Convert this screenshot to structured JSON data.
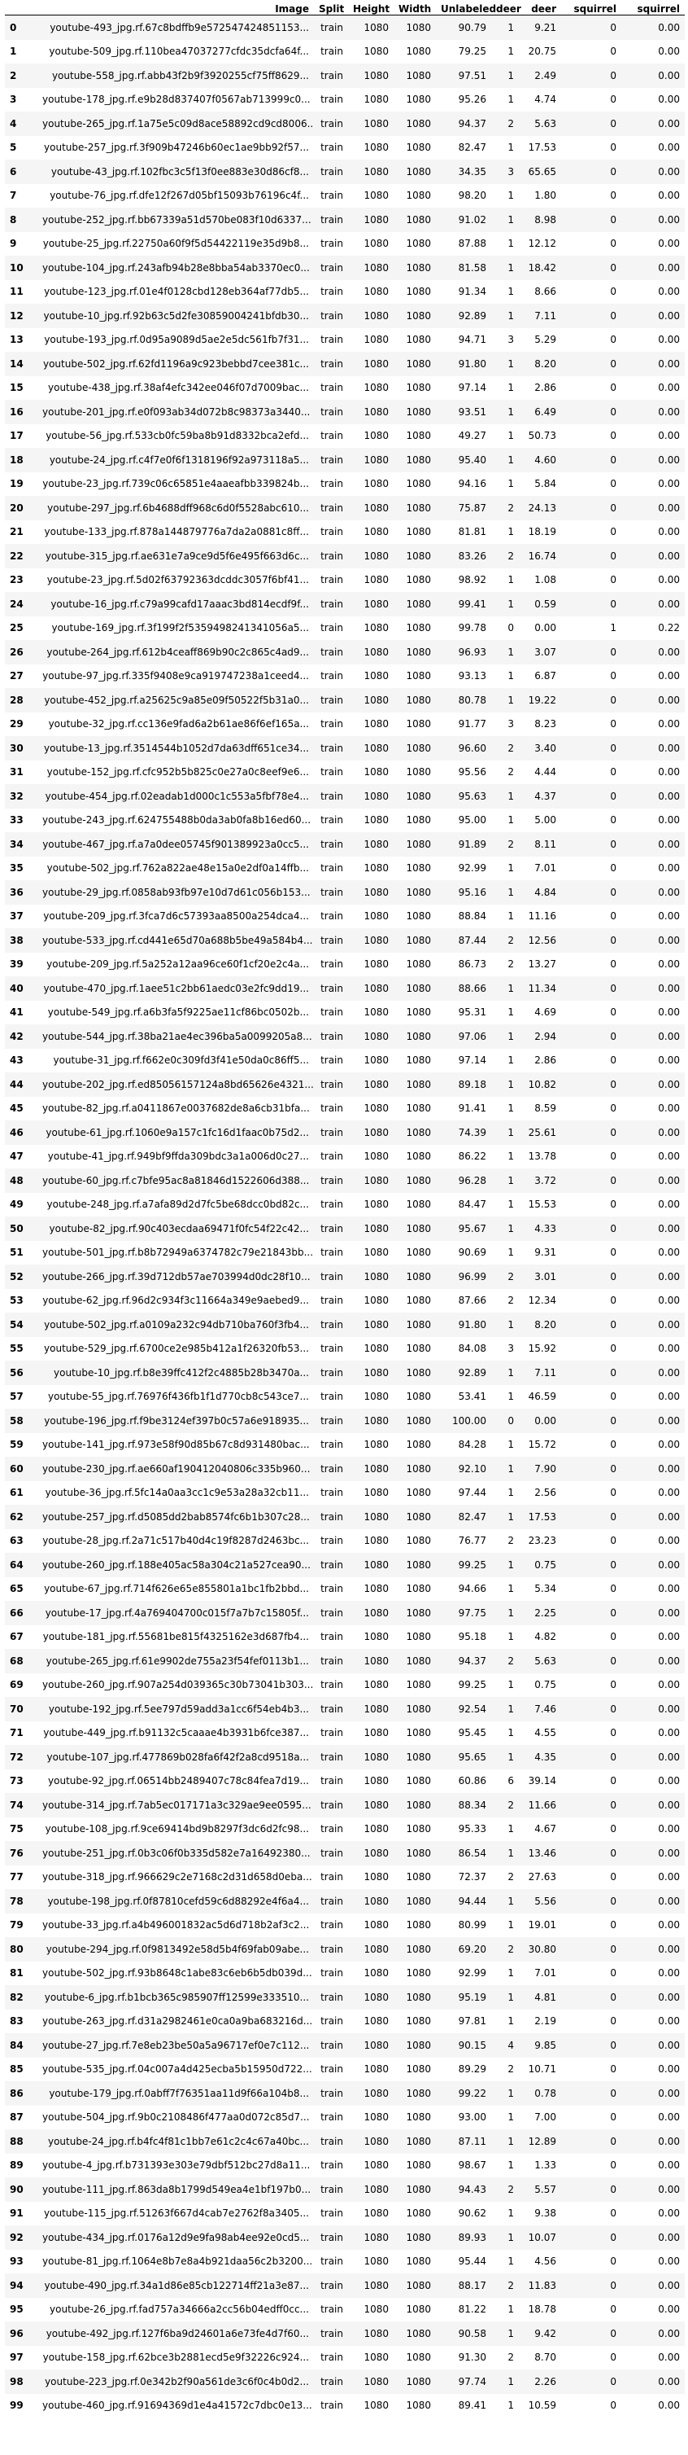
{
  "columns": [
    "",
    "Image",
    "Split",
    "Height",
    "Width",
    "Unlabeled",
    "deer",
    "deer",
    "squirrel",
    "squirrel"
  ],
  "rows": [
    [
      "0",
      "youtube-493_jpg.rf.67c8bdffb9e572547424851153...",
      "train",
      "1080",
      "1080",
      "90.79",
      "1",
      "9.21",
      "0",
      "0.00"
    ],
    [
      "1",
      "youtube-509_jpg.rf.110bea47037277cfdc35dcfa64f...",
      "train",
      "1080",
      "1080",
      "79.25",
      "1",
      "20.75",
      "0",
      "0.00"
    ],
    [
      "2",
      "youtube-558_jpg.rf.abb43f2b9f3920255cf75ff8629...",
      "train",
      "1080",
      "1080",
      "97.51",
      "1",
      "2.49",
      "0",
      "0.00"
    ],
    [
      "3",
      "youtube-178_jpg.rf.e9b28d837407f0567ab713999c0...",
      "train",
      "1080",
      "1080",
      "95.26",
      "1",
      "4.74",
      "0",
      "0.00"
    ],
    [
      "4",
      "youtube-265_jpg.rf.1a75e5c09d8ace58892cd9cd8006...",
      "train",
      "1080",
      "1080",
      "94.37",
      "2",
      "5.63",
      "0",
      "0.00"
    ],
    [
      "5",
      "youtube-257_jpg.rf.3f909b47246b60ec1ae9bb92f57...",
      "train",
      "1080",
      "1080",
      "82.47",
      "1",
      "17.53",
      "0",
      "0.00"
    ],
    [
      "6",
      "youtube-43_jpg.rf.102fbc3c5f13f0ee883e30d86cf8...",
      "train",
      "1080",
      "1080",
      "34.35",
      "3",
      "65.65",
      "0",
      "0.00"
    ],
    [
      "7",
      "youtube-76_jpg.rf.dfe12f267d05bf15093b76196c4f...",
      "train",
      "1080",
      "1080",
      "98.20",
      "1",
      "1.80",
      "0",
      "0.00"
    ],
    [
      "8",
      "youtube-252_jpg.rf.bb67339a51d570be083f10d6337...",
      "train",
      "1080",
      "1080",
      "91.02",
      "1",
      "8.98",
      "0",
      "0.00"
    ],
    [
      "9",
      "youtube-25_jpg.rf.22750a60f9f5d54422119e35d9b8...",
      "train",
      "1080",
      "1080",
      "87.88",
      "1",
      "12.12",
      "0",
      "0.00"
    ],
    [
      "10",
      "youtube-104_jpg.rf.243afb94b28e8bba54ab3370ec0...",
      "train",
      "1080",
      "1080",
      "81.58",
      "1",
      "18.42",
      "0",
      "0.00"
    ],
    [
      "11",
      "youtube-123_jpg.rf.01e4f0128cbd128eb364af77db5...",
      "train",
      "1080",
      "1080",
      "91.34",
      "1",
      "8.66",
      "0",
      "0.00"
    ],
    [
      "12",
      "youtube-10_jpg.rf.92b63c5d2fe30859004241bfdb30...",
      "train",
      "1080",
      "1080",
      "92.89",
      "1",
      "7.11",
      "0",
      "0.00"
    ],
    [
      "13",
      "youtube-193_jpg.rf.0d95a9089d5ae2e5dc561fb7f31...",
      "train",
      "1080",
      "1080",
      "94.71",
      "3",
      "5.29",
      "0",
      "0.00"
    ],
    [
      "14",
      "youtube-502_jpg.rf.62fd1196a9c923bebbd7cee381c...",
      "train",
      "1080",
      "1080",
      "91.80",
      "1",
      "8.20",
      "0",
      "0.00"
    ],
    [
      "15",
      "youtube-438_jpg.rf.38af4efc342ee046f07d7009bac...",
      "train",
      "1080",
      "1080",
      "97.14",
      "1",
      "2.86",
      "0",
      "0.00"
    ],
    [
      "16",
      "youtube-201_jpg.rf.e0f093ab34d072b8c98373a3440...",
      "train",
      "1080",
      "1080",
      "93.51",
      "1",
      "6.49",
      "0",
      "0.00"
    ],
    [
      "17",
      "youtube-56_jpg.rf.533cb0fc59ba8b91d8332bca2efd...",
      "train",
      "1080",
      "1080",
      "49.27",
      "1",
      "50.73",
      "0",
      "0.00"
    ],
    [
      "18",
      "youtube-24_jpg.rf.c4f7e0f6f1318196f92a973118a5...",
      "train",
      "1080",
      "1080",
      "95.40",
      "1",
      "4.60",
      "0",
      "0.00"
    ],
    [
      "19",
      "youtube-23_jpg.rf.739c06c65851e4aaeafbb339824b...",
      "train",
      "1080",
      "1080",
      "94.16",
      "1",
      "5.84",
      "0",
      "0.00"
    ],
    [
      "20",
      "youtube-297_jpg.rf.6b4688dff968c6d0f5528abc610...",
      "train",
      "1080",
      "1080",
      "75.87",
      "2",
      "24.13",
      "0",
      "0.00"
    ],
    [
      "21",
      "youtube-133_jpg.rf.878a144879776a7da2a0881c8ff...",
      "train",
      "1080",
      "1080",
      "81.81",
      "1",
      "18.19",
      "0",
      "0.00"
    ],
    [
      "22",
      "youtube-315_jpg.rf.ae631e7a9ce9d5f6e495f663d6c...",
      "train",
      "1080",
      "1080",
      "83.26",
      "2",
      "16.74",
      "0",
      "0.00"
    ],
    [
      "23",
      "youtube-23_jpg.rf.5d02f63792363dcddc3057f6bf41...",
      "train",
      "1080",
      "1080",
      "98.92",
      "1",
      "1.08",
      "0",
      "0.00"
    ],
    [
      "24",
      "youtube-16_jpg.rf.c79a99cafd17aaac3bd814ecdf9f...",
      "train",
      "1080",
      "1080",
      "99.41",
      "1",
      "0.59",
      "0",
      "0.00"
    ],
    [
      "25",
      "youtube-169_jpg.rf.3f199f2f5359498241341056a5...",
      "train",
      "1080",
      "1080",
      "99.78",
      "0",
      "0.00",
      "1",
      "0.22"
    ],
    [
      "26",
      "youtube-264_jpg.rf.612b4ceaff869b90c2c865c4ad9...",
      "train",
      "1080",
      "1080",
      "96.93",
      "1",
      "3.07",
      "0",
      "0.00"
    ],
    [
      "27",
      "youtube-97_jpg.rf.335f9408e9ca919747238a1ceed4...",
      "train",
      "1080",
      "1080",
      "93.13",
      "1",
      "6.87",
      "0",
      "0.00"
    ],
    [
      "28",
      "youtube-452_jpg.rf.a25625c9a85e09f50522f5b31a0...",
      "train",
      "1080",
      "1080",
      "80.78",
      "1",
      "19.22",
      "0",
      "0.00"
    ],
    [
      "29",
      "youtube-32_jpg.rf.cc136e9fad6a2b61ae86f6ef165a...",
      "train",
      "1080",
      "1080",
      "91.77",
      "3",
      "8.23",
      "0",
      "0.00"
    ],
    [
      "30",
      "youtube-13_jpg.rf.3514544b1052d7da63dff651ce34...",
      "train",
      "1080",
      "1080",
      "96.60",
      "2",
      "3.40",
      "0",
      "0.00"
    ],
    [
      "31",
      "youtube-152_jpg.rf.cfc952b5b825c0e27a0c8eef9e6...",
      "train",
      "1080",
      "1080",
      "95.56",
      "2",
      "4.44",
      "0",
      "0.00"
    ],
    [
      "32",
      "youtube-454_jpg.rf.02eadab1d000c1c553a5fbf78e4...",
      "train",
      "1080",
      "1080",
      "95.63",
      "1",
      "4.37",
      "0",
      "0.00"
    ],
    [
      "33",
      "youtube-243_jpg.rf.624755488b0da3ab0fa8b16ed60...",
      "train",
      "1080",
      "1080",
      "95.00",
      "1",
      "5.00",
      "0",
      "0.00"
    ],
    [
      "34",
      "youtube-467_jpg.rf.a7a0dee05745f901389923a0cc5...",
      "train",
      "1080",
      "1080",
      "91.89",
      "2",
      "8.11",
      "0",
      "0.00"
    ],
    [
      "35",
      "youtube-502_jpg.rf.762a822ae48e15a0e2df0a14ffb...",
      "train",
      "1080",
      "1080",
      "92.99",
      "1",
      "7.01",
      "0",
      "0.00"
    ],
    [
      "36",
      "youtube-29_jpg.rf.0858ab93fb97e10d7d61c056b153...",
      "train",
      "1080",
      "1080",
      "95.16",
      "1",
      "4.84",
      "0",
      "0.00"
    ],
    [
      "37",
      "youtube-209_jpg.rf.3fca7d6c57393aa8500a254dca4...",
      "train",
      "1080",
      "1080",
      "88.84",
      "1",
      "11.16",
      "0",
      "0.00"
    ],
    [
      "38",
      "youtube-533_jpg.rf.cd441e65d70a688b5be49a584b4...",
      "train",
      "1080",
      "1080",
      "87.44",
      "2",
      "12.56",
      "0",
      "0.00"
    ],
    [
      "39",
      "youtube-209_jpg.rf.5a252a12aa96ce60f1cf20e2c4a...",
      "train",
      "1080",
      "1080",
      "86.73",
      "2",
      "13.27",
      "0",
      "0.00"
    ],
    [
      "40",
      "youtube-470_jpg.rf.1aee51c2bb61aedc03e2fc9dd19...",
      "train",
      "1080",
      "1080",
      "88.66",
      "1",
      "11.34",
      "0",
      "0.00"
    ],
    [
      "41",
      "youtube-549_jpg.rf.a6b3fa5f9225ae11cf86bc0502b...",
      "train",
      "1080",
      "1080",
      "95.31",
      "1",
      "4.69",
      "0",
      "0.00"
    ],
    [
      "42",
      "youtube-544_jpg.rf.38ba21ae4ec396ba5a0099205a8...",
      "train",
      "1080",
      "1080",
      "97.06",
      "1",
      "2.94",
      "0",
      "0.00"
    ],
    [
      "43",
      "youtube-31_jpg.rf.f662e0c309fd3f41e50da0c86ff5...",
      "train",
      "1080",
      "1080",
      "97.14",
      "1",
      "2.86",
      "0",
      "0.00"
    ],
    [
      "44",
      "youtube-202_jpg.rf.ed85056157124a8bd65626e4321...",
      "train",
      "1080",
      "1080",
      "89.18",
      "1",
      "10.82",
      "0",
      "0.00"
    ],
    [
      "45",
      "youtube-82_jpg.rf.a0411867e0037682de8a6cb31bfa...",
      "train",
      "1080",
      "1080",
      "91.41",
      "1",
      "8.59",
      "0",
      "0.00"
    ],
    [
      "46",
      "youtube-61_jpg.rf.1060e9a157c1fc16d1faac0b75d2...",
      "train",
      "1080",
      "1080",
      "74.39",
      "1",
      "25.61",
      "0",
      "0.00"
    ],
    [
      "47",
      "youtube-41_jpg.rf.949bf9ffda309bdc3a1a006d0c27...",
      "train",
      "1080",
      "1080",
      "86.22",
      "1",
      "13.78",
      "0",
      "0.00"
    ],
    [
      "48",
      "youtube-60_jpg.rf.c7bfe95ac8a81846d1522606d388...",
      "train",
      "1080",
      "1080",
      "96.28",
      "1",
      "3.72",
      "0",
      "0.00"
    ],
    [
      "49",
      "youtube-248_jpg.rf.a7afa89d2d7fc5be68dcc0bd82c...",
      "train",
      "1080",
      "1080",
      "84.47",
      "1",
      "15.53",
      "0",
      "0.00"
    ],
    [
      "50",
      "youtube-82_jpg.rf.90c403ecdaa69471f0fc54f22c42...",
      "train",
      "1080",
      "1080",
      "95.67",
      "1",
      "4.33",
      "0",
      "0.00"
    ],
    [
      "51",
      "youtube-501_jpg.rf.b8b72949a6374782c79e21843bb...",
      "train",
      "1080",
      "1080",
      "90.69",
      "1",
      "9.31",
      "0",
      "0.00"
    ],
    [
      "52",
      "youtube-266_jpg.rf.39d712db57ae703994d0dc28f10...",
      "train",
      "1080",
      "1080",
      "96.99",
      "2",
      "3.01",
      "0",
      "0.00"
    ],
    [
      "53",
      "youtube-62_jpg.rf.96d2c934f3c11664a349e9aebed9...",
      "train",
      "1080",
      "1080",
      "87.66",
      "2",
      "12.34",
      "0",
      "0.00"
    ],
    [
      "54",
      "youtube-502_jpg.rf.a0109a232c94db710ba760f3fb4...",
      "train",
      "1080",
      "1080",
      "91.80",
      "1",
      "8.20",
      "0",
      "0.00"
    ],
    [
      "55",
      "youtube-529_jpg.rf.6700ce2e985b412a1f26320fb53...",
      "train",
      "1080",
      "1080",
      "84.08",
      "3",
      "15.92",
      "0",
      "0.00"
    ],
    [
      "56",
      "youtube-10_jpg.rf.b8e39ffc412f2c4885b28b3470a...",
      "train",
      "1080",
      "1080",
      "92.89",
      "1",
      "7.11",
      "0",
      "0.00"
    ],
    [
      "57",
      "youtube-55_jpg.rf.76976f436fb1f1d770cb8c543ce7...",
      "train",
      "1080",
      "1080",
      "53.41",
      "1",
      "46.59",
      "0",
      "0.00"
    ],
    [
      "58",
      "youtube-196_jpg.rf.f9be3124ef397b0c57a6e918935...",
      "train",
      "1080",
      "1080",
      "100.00",
      "0",
      "0.00",
      "0",
      "0.00"
    ],
    [
      "59",
      "youtube-141_jpg.rf.973e58f90d85b67c8d931480bac...",
      "train",
      "1080",
      "1080",
      "84.28",
      "1",
      "15.72",
      "0",
      "0.00"
    ],
    [
      "60",
      "youtube-230_jpg.rf.ae660af190412040806c335b960...",
      "train",
      "1080",
      "1080",
      "92.10",
      "1",
      "7.90",
      "0",
      "0.00"
    ],
    [
      "61",
      "youtube-36_jpg.rf.5fc14a0aa3cc1c9e53a28a32cb11...",
      "train",
      "1080",
      "1080",
      "97.44",
      "1",
      "2.56",
      "0",
      "0.00"
    ],
    [
      "62",
      "youtube-257_jpg.rf.d5085dd2bab8574fc6b1b307c28...",
      "train",
      "1080",
      "1080",
      "82.47",
      "1",
      "17.53",
      "0",
      "0.00"
    ],
    [
      "63",
      "youtube-28_jpg.rf.2a71c517b40d4c19f8287d2463bc...",
      "train",
      "1080",
      "1080",
      "76.77",
      "2",
      "23.23",
      "0",
      "0.00"
    ],
    [
      "64",
      "youtube-260_jpg.rf.188e405ac58a304c21a527cea90...",
      "train",
      "1080",
      "1080",
      "99.25",
      "1",
      "0.75",
      "0",
      "0.00"
    ],
    [
      "65",
      "youtube-67_jpg.rf.714f626e65e855801a1bc1fb2bbd...",
      "train",
      "1080",
      "1080",
      "94.66",
      "1",
      "5.34",
      "0",
      "0.00"
    ],
    [
      "66",
      "youtube-17_jpg.rf.4a769404700c015f7a7b7c15805f...",
      "train",
      "1080",
      "1080",
      "97.75",
      "1",
      "2.25",
      "0",
      "0.00"
    ],
    [
      "67",
      "youtube-181_jpg.rf.55681be815f4325162e3d687fb4...",
      "train",
      "1080",
      "1080",
      "95.18",
      "1",
      "4.82",
      "0",
      "0.00"
    ],
    [
      "68",
      "youtube-265_jpg.rf.61e9902de755a23f54fef0113b1...",
      "train",
      "1080",
      "1080",
      "94.37",
      "2",
      "5.63",
      "0",
      "0.00"
    ],
    [
      "69",
      "youtube-260_jpg.rf.907a254d039365c30b73041b303...",
      "train",
      "1080",
      "1080",
      "99.25",
      "1",
      "0.75",
      "0",
      "0.00"
    ],
    [
      "70",
      "youtube-192_jpg.rf.5ee797d59add3a1cc6f54eb4b3...",
      "train",
      "1080",
      "1080",
      "92.54",
      "1",
      "7.46",
      "0",
      "0.00"
    ],
    [
      "71",
      "youtube-449_jpg.rf.b91132c5caaae4b3931b6fce387...",
      "train",
      "1080",
      "1080",
      "95.45",
      "1",
      "4.55",
      "0",
      "0.00"
    ],
    [
      "72",
      "youtube-107_jpg.rf.477869b028fa6f42f2a8cd9518a...",
      "train",
      "1080",
      "1080",
      "95.65",
      "1",
      "4.35",
      "0",
      "0.00"
    ],
    [
      "73",
      "youtube-92_jpg.rf.06514bb2489407c78c84fea7d19...",
      "train",
      "1080",
      "1080",
      "60.86",
      "6",
      "39.14",
      "0",
      "0.00"
    ],
    [
      "74",
      "youtube-314_jpg.rf.7ab5ec017171a3c329ae9ee0595...",
      "train",
      "1080",
      "1080",
      "88.34",
      "2",
      "11.66",
      "0",
      "0.00"
    ],
    [
      "75",
      "youtube-108_jpg.rf.9ce69414bd9b8297f3dc6d2fc98...",
      "train",
      "1080",
      "1080",
      "95.33",
      "1",
      "4.67",
      "0",
      "0.00"
    ],
    [
      "76",
      "youtube-251_jpg.rf.0b3c06f0b335d582e7a16492380...",
      "train",
      "1080",
      "1080",
      "86.54",
      "1",
      "13.46",
      "0",
      "0.00"
    ],
    [
      "77",
      "youtube-318_jpg.rf.966629c2e7168c2d31d658d0eba...",
      "train",
      "1080",
      "1080",
      "72.37",
      "2",
      "27.63",
      "0",
      "0.00"
    ],
    [
      "78",
      "youtube-198_jpg.rf.0f87810cefd59c6d88292e4f6a4...",
      "train",
      "1080",
      "1080",
      "94.44",
      "1",
      "5.56",
      "0",
      "0.00"
    ],
    [
      "79",
      "youtube-33_jpg.rf.a4b496001832ac5d6d718b2af3c2...",
      "train",
      "1080",
      "1080",
      "80.99",
      "1",
      "19.01",
      "0",
      "0.00"
    ],
    [
      "80",
      "youtube-294_jpg.rf.0f9813492e58d5b4f69fab09abe...",
      "train",
      "1080",
      "1080",
      "69.20",
      "2",
      "30.80",
      "0",
      "0.00"
    ],
    [
      "81",
      "youtube-502_jpg.rf.93b8648c1abe83c6eb6b5db039d...",
      "train",
      "1080",
      "1080",
      "92.99",
      "1",
      "7.01",
      "0",
      "0.00"
    ],
    [
      "82",
      "youtube-6_jpg.rf.b1bcb365c985907ff12599e333510...",
      "train",
      "1080",
      "1080",
      "95.19",
      "1",
      "4.81",
      "0",
      "0.00"
    ],
    [
      "83",
      "youtube-263_jpg.rf.d31a2982461e0ca0a9ba683216d...",
      "train",
      "1080",
      "1080",
      "97.81",
      "1",
      "2.19",
      "0",
      "0.00"
    ],
    [
      "84",
      "youtube-27_jpg.rf.7e8eb23be50a5a96717ef0e7c112...",
      "train",
      "1080",
      "1080",
      "90.15",
      "4",
      "9.85",
      "0",
      "0.00"
    ],
    [
      "85",
      "youtube-535_jpg.rf.04c007a4d425ecba5b15950d722...",
      "train",
      "1080",
      "1080",
      "89.29",
      "2",
      "10.71",
      "0",
      "0.00"
    ],
    [
      "86",
      "youtube-179_jpg.rf.0abff7f76351aa11d9f66a104b8...",
      "train",
      "1080",
      "1080",
      "99.22",
      "1",
      "0.78",
      "0",
      "0.00"
    ],
    [
      "87",
      "youtube-504_jpg.rf.9b0c2108486f477aa0d072c85d7...",
      "train",
      "1080",
      "1080",
      "93.00",
      "1",
      "7.00",
      "0",
      "0.00"
    ],
    [
      "88",
      "youtube-24_jpg.rf.b4fc4f81c1bb7e61c2c4c67a40bc...",
      "train",
      "1080",
      "1080",
      "87.11",
      "1",
      "12.89",
      "0",
      "0.00"
    ],
    [
      "89",
      "youtube-4_jpg.rf.b731393e303e79dbf512bc27d8a11...",
      "train",
      "1080",
      "1080",
      "98.67",
      "1",
      "1.33",
      "0",
      "0.00"
    ],
    [
      "90",
      "youtube-111_jpg.rf.863da8b1799d549ea4e1bf197b0...",
      "train",
      "1080",
      "1080",
      "94.43",
      "2",
      "5.57",
      "0",
      "0.00"
    ],
    [
      "91",
      "youtube-115_jpg.rf.51263f667d4cab7e2762f8a3405...",
      "train",
      "1080",
      "1080",
      "90.62",
      "1",
      "9.38",
      "0",
      "0.00"
    ],
    [
      "92",
      "youtube-434_jpg.rf.0176a12d9e9fa98ab4ee92e0cd5...",
      "train",
      "1080",
      "1080",
      "89.93",
      "1",
      "10.07",
      "0",
      "0.00"
    ],
    [
      "93",
      "youtube-81_jpg.rf.1064e8b7e8a4b921daa56c2b3200...",
      "train",
      "1080",
      "1080",
      "95.44",
      "1",
      "4.56",
      "0",
      "0.00"
    ],
    [
      "94",
      "youtube-490_jpg.rf.34a1d86e85cb122714ff21a3e87...",
      "train",
      "1080",
      "1080",
      "88.17",
      "2",
      "11.83",
      "0",
      "0.00"
    ],
    [
      "95",
      "youtube-26_jpg.rf.fad757a34666a2cc56b04edff0cc...",
      "train",
      "1080",
      "1080",
      "81.22",
      "1",
      "18.78",
      "0",
      "0.00"
    ],
    [
      "96",
      "youtube-492_jpg.rf.127f6ba9d24601a6e73fe4d7f60...",
      "train",
      "1080",
      "1080",
      "90.58",
      "1",
      "9.42",
      "0",
      "0.00"
    ],
    [
      "97",
      "youtube-158_jpg.rf.62bce3b2881ecd5e9f32226c924...",
      "train",
      "1080",
      "1080",
      "91.30",
      "2",
      "8.70",
      "0",
      "0.00"
    ],
    [
      "98",
      "youtube-223_jpg.rf.0e342b2f90a561de3c6f0c4b0d2...",
      "train",
      "1080",
      "1080",
      "97.74",
      "1",
      "2.26",
      "0",
      "0.00"
    ],
    [
      "99",
      "youtube-460_jpg.rf.91694369d1e4a41572c7dbc0e13...",
      "train",
      "1080",
      "1080",
      "89.41",
      "1",
      "10.59",
      "0",
      "0.00"
    ]
  ]
}
